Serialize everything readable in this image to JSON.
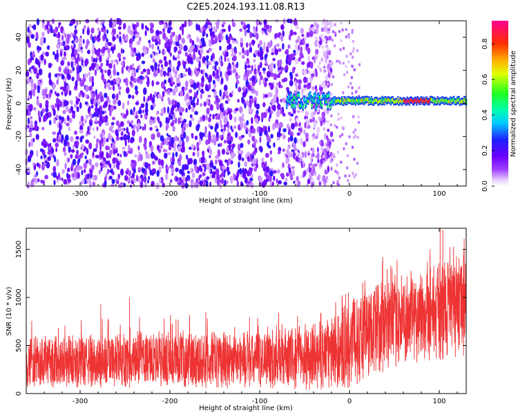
{
  "title": "C2E5.2024.193.11.08.R13",
  "chart_data": [
    {
      "type": "heatmap",
      "xlabel": "Height of straight line (km)",
      "ylabel": "Frequency (Hz)",
      "xlim": [
        -360,
        130
      ],
      "ylim": [
        -50,
        50
      ],
      "x_ticks": [
        "-300",
        "-200",
        "-100",
        "0",
        "100"
      ],
      "x_tick_values": [
        -300,
        -200,
        -100,
        0,
        100
      ],
      "y_ticks": [
        "40",
        "20",
        "0",
        "-20",
        "-40"
      ],
      "y_tick_values": [
        40,
        20,
        0,
        -20,
        -40
      ],
      "colorbar": {
        "label": "Normalized spectral amplitude",
        "range": [
          0,
          0.93
        ],
        "ticks": [
          "0.0",
          "0.2",
          "0.4",
          "0.6",
          "0.8"
        ],
        "tick_values": [
          0.0,
          0.2,
          0.4,
          0.6,
          0.8
        ],
        "colormap": "rainbow (white → purple → blue → cyan → green → yellow → red → magenta)"
      },
      "noise_region": {
        "x_range": [
          -360,
          -40
        ],
        "freq_range": [
          -50,
          50
        ],
        "amplitude_range": [
          0.05,
          0.25
        ]
      },
      "signal_line": {
        "x_range": [
          -70,
          130
        ],
        "frequency": 1.5,
        "amplitude_range": [
          0.3,
          0.9
        ],
        "peak_x_range": [
          60,
          90
        ]
      }
    },
    {
      "type": "line",
      "xlabel": "Height of straight line (km)",
      "ylabel": "SNR (10 * v/v)",
      "xlim": [
        -360,
        130
      ],
      "ylim": [
        0,
        1720
      ],
      "x_ticks": [
        "-300",
        "-200",
        "-100",
        "0",
        "100"
      ],
      "x_tick_values": [
        -300,
        -200,
        -100,
        0,
        100
      ],
      "y_ticks": [
        "0",
        "500",
        "1000",
        "1500"
      ],
      "y_tick_values": [
        0,
        500,
        1000,
        1500
      ],
      "color": "#ee3333",
      "series_envelope": {
        "x": [
          -360,
          -300,
          -200,
          -100,
          -50,
          -20,
          0,
          30,
          60,
          100,
          130
        ],
        "low": [
          60,
          60,
          60,
          50,
          40,
          30,
          50,
          200,
          300,
          350,
          400
        ],
        "high": [
          600,
          620,
          640,
          660,
          690,
          800,
          1000,
          1200,
          1250,
          1400,
          1450
        ]
      },
      "spikes": [
        {
          "x": -277,
          "y": 930
        },
        {
          "x": -245,
          "y": 1000
        },
        {
          "x": -160,
          "y": 850
        },
        {
          "x": 37,
          "y": 1420
        },
        {
          "x": 101,
          "y": 1720
        },
        {
          "x": 104,
          "y": 1700
        },
        {
          "x": 127,
          "y": 1440
        }
      ]
    }
  ]
}
